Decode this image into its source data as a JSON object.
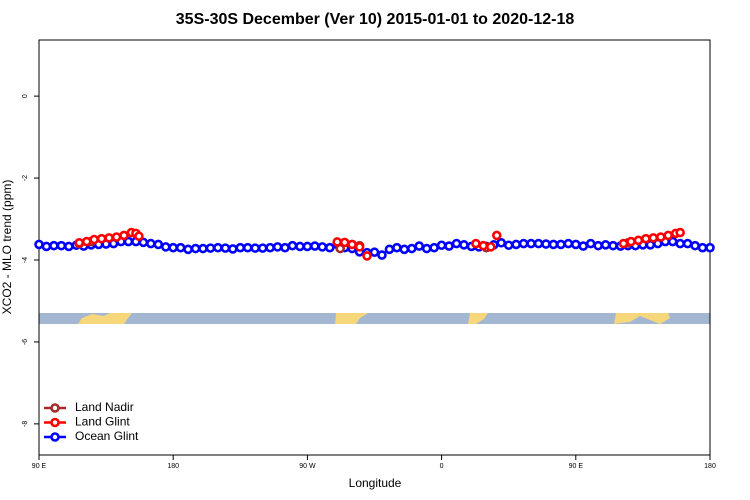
{
  "chart_data": {
    "type": "scatter",
    "title": "35S-30S December (Ver 10)   2015-01-01 to 2020-12-18",
    "xlabel": "Longitude",
    "ylabel": "XCO2 - MLO trend (ppm)",
    "xlim": [
      90,
      540
    ],
    "ylim": [
      -8.76,
      1.37
    ],
    "xticks": [
      {
        "value": 90,
        "label": "90 E"
      },
      180,
      {
        "value": 270,
        "label": "90 W"
      },
      {
        "value": 360,
        "label": "0"
      },
      {
        "value": 450,
        "label": "90 E"
      },
      {
        "value": 540,
        "label": "180"
      }
    ],
    "yticks": [
      0,
      -2,
      -4,
      -6,
      -8
    ],
    "legend": "bottom-left",
    "series": [
      {
        "name": "Ocean Glint",
        "color": "#0000ff",
        "x": [
          90,
          95,
          100,
          105,
          110,
          115,
          120,
          125,
          130,
          135,
          140,
          145,
          150,
          155,
          160,
          165,
          170,
          175,
          180,
          185,
          190,
          195,
          200,
          205,
          210,
          215,
          220,
          225,
          230,
          235,
          240,
          245,
          250,
          255,
          260,
          265,
          270,
          275,
          280,
          285,
          290,
          295,
          300,
          305,
          310,
          315,
          320,
          325,
          330,
          335,
          340,
          345,
          350,
          355,
          360,
          365,
          370,
          375,
          380,
          385,
          390,
          395,
          400,
          405,
          410,
          415,
          420,
          425,
          430,
          435,
          440,
          445,
          450,
          455,
          460,
          465,
          470,
          475,
          480,
          485,
          490,
          495,
          500,
          505,
          510,
          515,
          520,
          525,
          530,
          535,
          540
        ],
        "values": [
          -3.62,
          -3.67,
          -3.65,
          -3.65,
          -3.67,
          -3.64,
          -3.66,
          -3.63,
          -3.62,
          -3.61,
          -3.6,
          -3.55,
          -3.55,
          -3.55,
          -3.57,
          -3.6,
          -3.62,
          -3.68,
          -3.7,
          -3.7,
          -3.74,
          -3.72,
          -3.72,
          -3.71,
          -3.7,
          -3.71,
          -3.73,
          -3.7,
          -3.7,
          -3.71,
          -3.71,
          -3.7,
          -3.68,
          -3.7,
          -3.65,
          -3.67,
          -3.67,
          -3.66,
          -3.68,
          -3.7,
          -3.62,
          -3.7,
          -3.72,
          -3.8,
          -3.82,
          -3.81,
          -3.88,
          -3.74,
          -3.7,
          -3.74,
          -3.72,
          -3.66,
          -3.72,
          -3.7,
          -3.64,
          -3.66,
          -3.6,
          -3.63,
          -3.67,
          -3.68,
          -3.67,
          -3.63,
          -3.58,
          -3.64,
          -3.62,
          -3.6,
          -3.6,
          -3.6,
          -3.61,
          -3.62,
          -3.62,
          -3.6,
          -3.62,
          -3.66,
          -3.6,
          -3.65,
          -3.63,
          -3.65,
          -3.66,
          -3.65,
          -3.65,
          -3.63,
          -3.63,
          -3.6,
          -3.55,
          -3.55,
          -3.6,
          -3.6,
          -3.65,
          -3.7,
          -3.7
        ]
      },
      {
        "name": "Land Nadir",
        "color": "#a52a2a",
        "x": [
          117,
          125,
          292,
          305,
          390,
          485
        ],
        "values": [
          -3.6,
          -3.55,
          -3.72,
          -3.65,
          -3.7,
          -3.58
        ]
      },
      {
        "name": "Land Glint",
        "color": "#ff0000",
        "x": [
          117,
          122,
          127,
          132,
          137,
          142,
          147,
          152,
          155,
          157,
          290,
          295,
          300,
          305,
          310,
          383,
          388,
          393,
          397,
          482,
          487,
          492,
          497,
          502,
          507,
          512,
          517,
          520
        ],
        "values": [
          -3.58,
          -3.55,
          -3.5,
          -3.48,
          -3.46,
          -3.44,
          -3.4,
          -3.33,
          -3.35,
          -3.42,
          -3.56,
          -3.57,
          -3.62,
          -3.68,
          -3.9,
          -3.6,
          -3.65,
          -3.68,
          -3.4,
          -3.6,
          -3.55,
          -3.52,
          -3.48,
          -3.46,
          -3.44,
          -3.4,
          -3.35,
          -3.33
        ]
      }
    ]
  }
}
